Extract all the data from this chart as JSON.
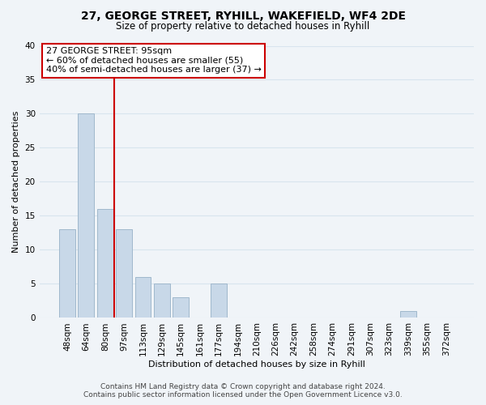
{
  "title": "27, GEORGE STREET, RYHILL, WAKEFIELD, WF4 2DE",
  "subtitle": "Size of property relative to detached houses in Ryhill",
  "xlabel": "Distribution of detached houses by size in Ryhill",
  "ylabel": "Number of detached properties",
  "footer_line1": "Contains HM Land Registry data © Crown copyright and database right 2024.",
  "footer_line2": "Contains public sector information licensed under the Open Government Licence v3.0.",
  "bin_labels": [
    "48sqm",
    "64sqm",
    "80sqm",
    "97sqm",
    "113sqm",
    "129sqm",
    "145sqm",
    "161sqm",
    "177sqm",
    "194sqm",
    "210sqm",
    "226sqm",
    "242sqm",
    "258sqm",
    "274sqm",
    "291sqm",
    "307sqm",
    "323sqm",
    "339sqm",
    "355sqm",
    "372sqm"
  ],
  "bar_heights": [
    13,
    30,
    16,
    13,
    6,
    5,
    3,
    0,
    5,
    0,
    0,
    0,
    0,
    0,
    0,
    0,
    0,
    0,
    1,
    0,
    0
  ],
  "bar_color": "#c8d8e8",
  "bar_edge_color": "#a0b8cc",
  "highlight_line_color": "#cc0000",
  "highlight_line_index": 2.5,
  "annotation_title": "27 GEORGE STREET: 95sqm",
  "annotation_line1": "← 60% of detached houses are smaller (55)",
  "annotation_line2": "40% of semi-detached houses are larger (37) →",
  "annotation_box_color": "#ffffff",
  "annotation_box_edge_color": "#cc0000",
  "ylim": [
    0,
    40
  ],
  "yticks": [
    0,
    5,
    10,
    15,
    20,
    25,
    30,
    35,
    40
  ],
  "grid_color": "#d8e4ee",
  "background_color": "#f0f4f8",
  "title_fontsize": 10,
  "subtitle_fontsize": 8.5,
  "axis_label_fontsize": 8,
  "tick_fontsize": 7.5,
  "footer_fontsize": 6.5,
  "annotation_fontsize": 8
}
